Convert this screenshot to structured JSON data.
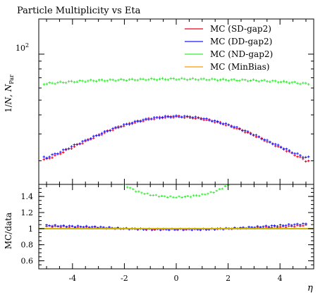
{
  "chart_data": {
    "type": "scatter",
    "title": "Particle Multiplicity vs Eta",
    "xlabel": "η",
    "ylabel_main_prefix": "1/",
    "ylabel_main_n": "N",
    "ylabel_main_sep": ", ",
    "ylabel_main_n2": "N",
    "ylabel_main_sub": "Par",
    "ylabel_ratio": "MC/data",
    "xlim": [
      -5.3,
      5.3
    ],
    "main_ylim_log": [
      14,
      170
    ],
    "main_ytick_label": "10",
    "main_ytick_exp": "2",
    "ratio_ylim": [
      0.5,
      1.55
    ],
    "x_ticks": [
      "-4",
      "-2",
      "0",
      "2",
      "4"
    ],
    "x_tick_values": [
      -4,
      -2,
      0,
      2,
      4
    ],
    "ratio_ticks": [
      "0.6",
      "0.8",
      "1",
      "1.2",
      "1.4"
    ],
    "ratio_tick_values": [
      0.6,
      0.8,
      1.0,
      1.2,
      1.4
    ],
    "legend_position": "top-right",
    "series": [
      {
        "name": "MC (SD-gap2)",
        "color": "#e8001a",
        "x": [
          -5.0,
          -4.5,
          -4.0,
          -3.5,
          -3.0,
          -2.5,
          -2.0,
          -1.5,
          -1.0,
          -0.5,
          0.0,
          0.5,
          1.0,
          1.5,
          2.0,
          2.5,
          3.0,
          3.5,
          4.0,
          4.5,
          5.0
        ],
        "y": [
          20.4,
          22.2,
          24.5,
          26.8,
          29.4,
          31.9,
          34.2,
          36.1,
          37.7,
          38.6,
          39.0,
          38.6,
          37.7,
          36.1,
          34.2,
          31.9,
          29.4,
          26.8,
          24.5,
          22.2,
          20.0
        ]
      },
      {
        "name": "MC (DD-gap2)",
        "color": "#1a1aff",
        "x": [
          -5.0,
          -4.5,
          -4.0,
          -3.5,
          -3.0,
          -2.5,
          -2.0,
          -1.5,
          -1.0,
          -0.5,
          0.0,
          0.5,
          1.0,
          1.5,
          2.0,
          2.5,
          3.0,
          3.5,
          4.0,
          4.5,
          5.0
        ],
        "y": [
          21.0,
          22.7,
          24.9,
          27.1,
          29.6,
          32.1,
          34.3,
          36.2,
          37.8,
          38.7,
          39.1,
          38.8,
          37.9,
          36.3,
          34.4,
          32.1,
          29.6,
          27.0,
          24.8,
          22.6,
          21.0
        ]
      },
      {
        "name": "MC (ND-gap2)",
        "color": "#33ee33",
        "x": [
          -5.0,
          -4.5,
          -4.0,
          -3.5,
          -3.0,
          -2.5,
          -2.0,
          -1.5,
          -1.0,
          -0.5,
          0.0,
          0.5,
          1.0,
          1.5,
          2.0,
          2.5,
          3.0,
          3.5,
          4.0,
          4.5,
          5.0
        ],
        "y": [
          64.0,
          65.1,
          66.0,
          66.7,
          67.2,
          67.5,
          67.8,
          68.1,
          68.4,
          68.6,
          68.7,
          68.6,
          68.4,
          68.1,
          67.8,
          67.5,
          67.2,
          66.7,
          66.0,
          65.1,
          64.0
        ]
      },
      {
        "name": "MC (MinBias)",
        "color": "#ff9900",
        "x": [],
        "y": []
      }
    ],
    "ratio_series": [
      {
        "name": "MC (SD-gap2)",
        "color": "#e8001a",
        "x": [
          -5.0,
          -4.0,
          -3.0,
          -2.0,
          -1.0,
          0.0,
          1.0,
          2.0,
          3.0,
          4.0,
          5.0
        ],
        "y": [
          1.03,
          1.02,
          1.01,
          1.0,
          0.99,
          0.99,
          0.99,
          1.0,
          1.01,
          1.02,
          1.04
        ]
      },
      {
        "name": "MC (DD-gap2)",
        "color": "#1a1aff",
        "x": [
          -5.0,
          -4.0,
          -3.0,
          -2.0,
          -1.0,
          0.0,
          1.0,
          2.0,
          3.0,
          4.0,
          5.0
        ],
        "y": [
          1.04,
          1.03,
          1.02,
          1.0,
          0.99,
          0.99,
          0.99,
          1.0,
          1.02,
          1.04,
          1.06
        ]
      },
      {
        "name": "MC (ND-gap2)",
        "color": "#33ee33",
        "x": [
          -2.0,
          -1.5,
          -1.0,
          -0.5,
          0.0,
          0.5,
          1.0,
          1.5,
          2.0
        ],
        "y": [
          1.54,
          1.46,
          1.42,
          1.4,
          1.39,
          1.4,
          1.42,
          1.46,
          1.54
        ]
      },
      {
        "name": "MC (MinBias)",
        "color": "#c8b400",
        "x": [
          -5.3,
          5.3
        ],
        "y": [
          1.0,
          1.0
        ]
      }
    ]
  }
}
